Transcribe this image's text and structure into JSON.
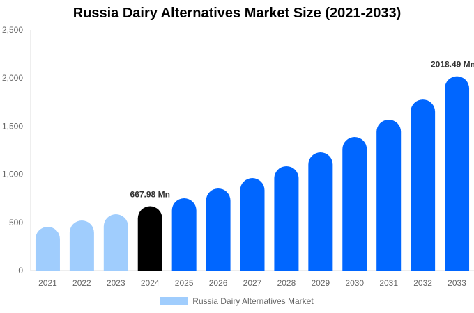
{
  "chart_data": {
    "type": "bar",
    "title": "Russia Dairy Alternatives Market Size (2021-2033)",
    "categories": [
      "2021",
      "2022",
      "2023",
      "2024",
      "2025",
      "2026",
      "2027",
      "2028",
      "2029",
      "2030",
      "2031",
      "2032",
      "2033"
    ],
    "series": [
      {
        "name": "Russia Dairy Alternatives Market",
        "values": [
          455,
          520,
          585,
          667.98,
          751,
          853,
          961,
          1084,
          1228,
          1387,
          1568,
          1777,
          2018.49
        ]
      }
    ],
    "data_labels": [
      {
        "category": "2024",
        "text": "667.98 Mn"
      },
      {
        "category": "2033",
        "text": "2018.49 Mn"
      }
    ],
    "ylim": [
      0,
      2500
    ],
    "yticks": [
      0,
      500,
      1000,
      1500,
      2000,
      2500
    ],
    "ytick_labels": [
      "0",
      "500",
      "1,000",
      "1,500",
      "2,000",
      "2,500"
    ],
    "grid": false,
    "legend": "bottom",
    "colors": {
      "historical": "#a0cdfd",
      "base_year": "#000000",
      "forecast": "#0066ff"
    }
  }
}
